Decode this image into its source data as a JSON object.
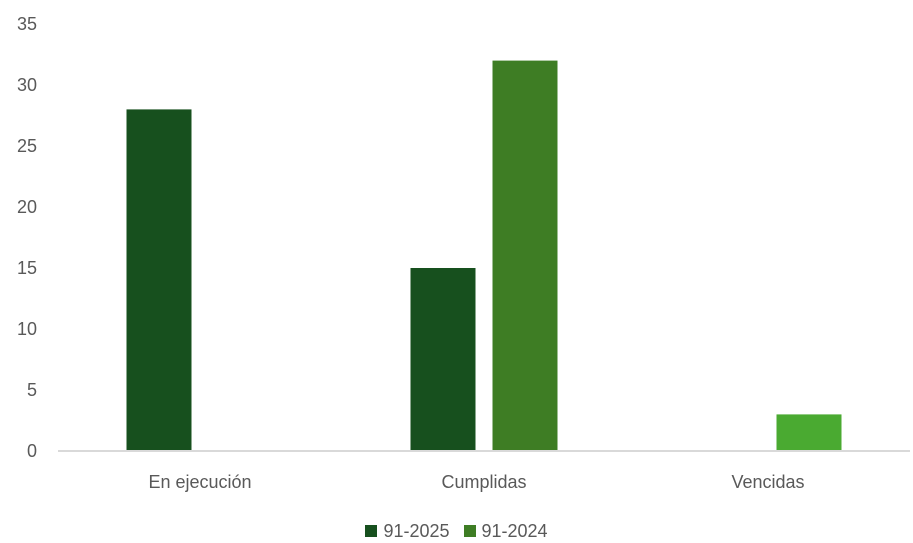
{
  "chart_data": {
    "type": "bar",
    "categories": [
      "En ejecución",
      "Cumplidas",
      "Vencidas"
    ],
    "series": [
      {
        "name": "91-2025",
        "values": [
          28,
          15,
          0
        ],
        "color": "#17501e"
      },
      {
        "name": "91-2024",
        "values": [
          0,
          32,
          3
        ],
        "colors": [
          "#3e7d24",
          "#3e7d24",
          "#4aaa31"
        ]
      }
    ],
    "yticks": [
      "0",
      "5",
      "10",
      "15",
      "20",
      "25",
      "30",
      "35"
    ],
    "ylim": [
      0,
      35
    ],
    "grid": false,
    "legend": "bottom-center",
    "axis_color": "#d9d9d9",
    "label_color": "#595959",
    "legend_items": [
      {
        "label": "91-2025",
        "color": "#17501e"
      },
      {
        "label": "91-2024",
        "color": "#3e7d24"
      }
    ]
  }
}
